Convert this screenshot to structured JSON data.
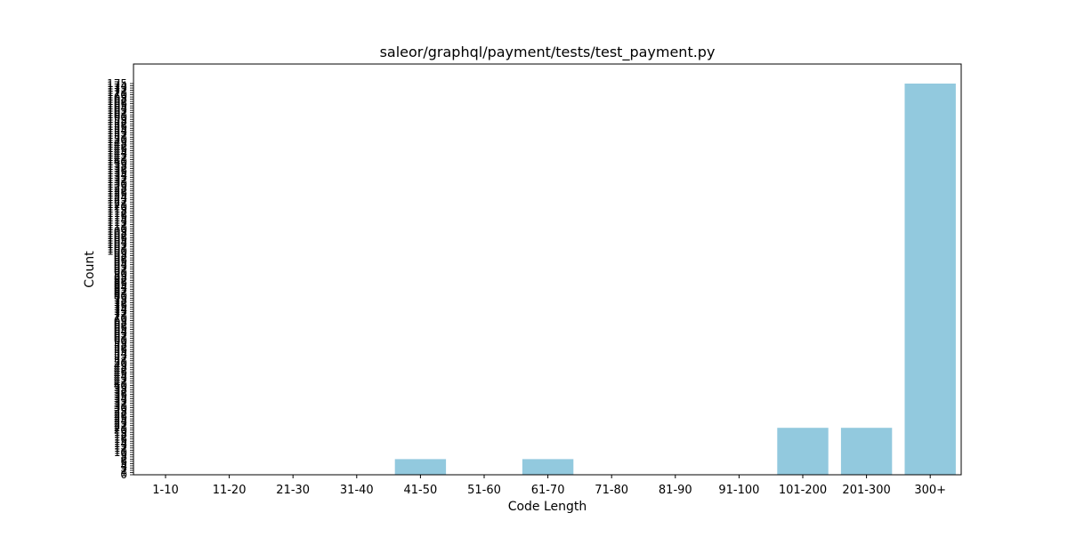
{
  "chart_data": {
    "type": "bar",
    "title": "saleor/graphql/payment/tests/test_payment.py",
    "xlabel": "Code Length",
    "ylabel": "Count",
    "categories": [
      "1-10",
      "11-20",
      "21-30",
      "31-40",
      "41-50",
      "51-60",
      "61-70",
      "71-80",
      "81-90",
      "91-100",
      "101-200",
      "201-300",
      "300+"
    ],
    "values": [
      0,
      0,
      0,
      0,
      7,
      0,
      7,
      0,
      0,
      0,
      21,
      21,
      175
    ],
    "ylim": [
      0,
      175
    ],
    "yticks_step": 1,
    "grid": false,
    "legend": "none",
    "bar_color": "#92c9de",
    "axis_color": "#000000"
  }
}
